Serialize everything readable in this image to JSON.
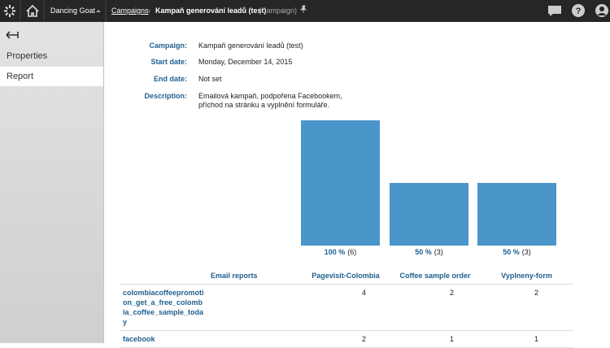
{
  "header": {
    "site": "Dancing Goat",
    "breadcrumb": "Campaigns",
    "title": "Kampaň generování leadů (test)",
    "object_type": "(Campaign)"
  },
  "sidebar": {
    "items": [
      "Properties",
      "Report"
    ],
    "selected": "Report"
  },
  "details": [
    {
      "label": "Campaign:",
      "value": "Kampaň generování leadů (test)"
    },
    {
      "label": "Start date:",
      "value": "Monday, December 14, 2015"
    },
    {
      "label": "End date:",
      "value": "Not set"
    },
    {
      "label": "Description:",
      "value": "Emailová kampaň, podpořena Facebookem, příchod na stránku a vyplnění formuláře."
    }
  ],
  "chart_data": {
    "type": "bar",
    "values": [
      100,
      50,
      50
    ],
    "value_labels": [
      "100 %",
      "50 %",
      "50 %"
    ],
    "count_labels": [
      "(6)",
      "(3)",
      "(3)"
    ],
    "ylim": [
      0,
      100
    ],
    "color": "#4a96cb"
  },
  "table": {
    "headers": [
      "Email reports",
      "Pagevisit-Colombia",
      "Coffee sample order",
      "Vyplneny-form"
    ],
    "rows": [
      [
        "colombiacoffeepromotion_get_a_free_colombia_coffee_sample_today",
        "4",
        "2",
        "2"
      ],
      [
        "facebook",
        "2",
        "1",
        "1"
      ]
    ]
  }
}
